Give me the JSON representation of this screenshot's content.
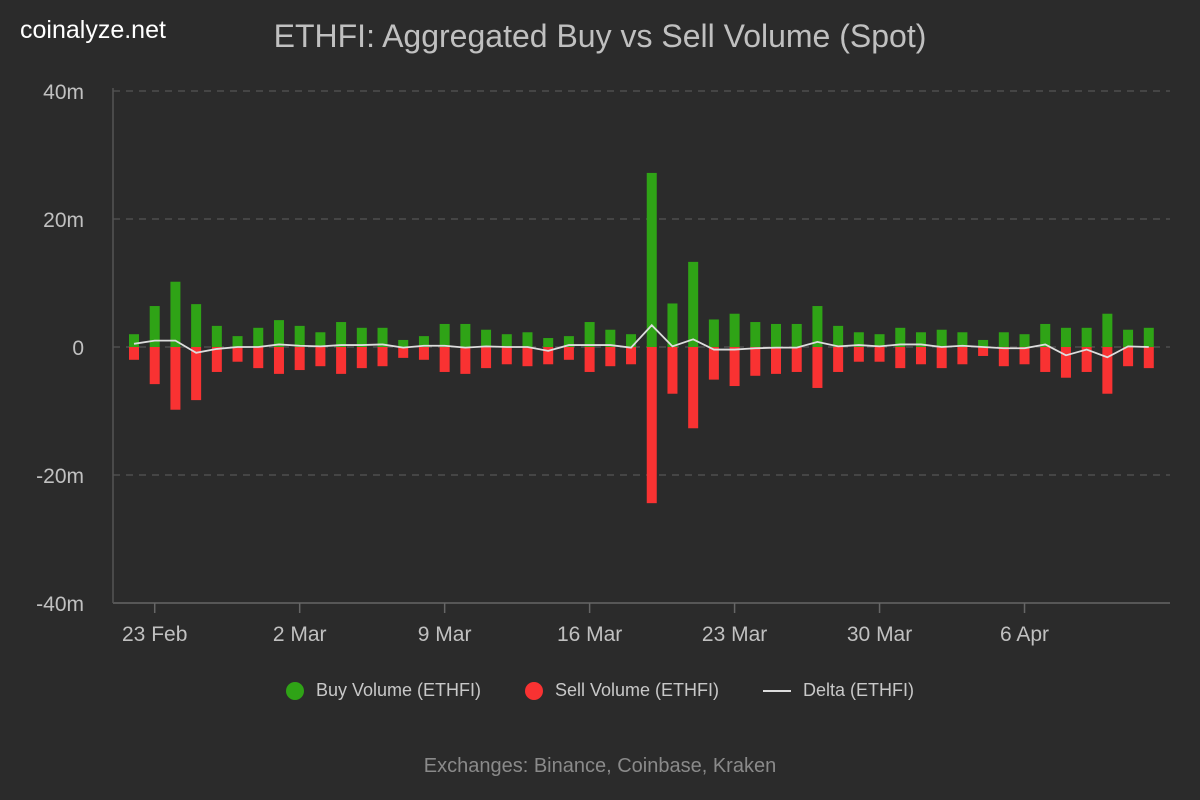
{
  "brand": "coinalyze.net",
  "chart_data": {
    "type": "bar",
    "title": "ETHFI: Aggregated Buy vs Sell Volume (Spot)",
    "categories": [
      "22 Feb",
      "23 Feb",
      "24 Feb",
      "25 Feb",
      "26 Feb",
      "27 Feb",
      "28 Feb",
      "1 Mar",
      "2 Mar",
      "3 Mar",
      "4 Mar",
      "5 Mar",
      "6 Mar",
      "7 Mar",
      "8 Mar",
      "9 Mar",
      "10 Mar",
      "11 Mar",
      "12 Mar",
      "13 Mar",
      "14 Mar",
      "15 Mar",
      "16 Mar",
      "17 Mar",
      "18 Mar",
      "19 Mar",
      "20 Mar",
      "21 Mar",
      "22 Mar",
      "23 Mar",
      "24 Mar",
      "25 Mar",
      "26 Mar",
      "27 Mar",
      "28 Mar",
      "29 Mar",
      "30 Mar",
      "31 Mar",
      "1 Apr",
      "2 Apr",
      "3 Apr",
      "4 Apr",
      "5 Apr",
      "6 Apr",
      "7 Apr",
      "8 Apr",
      "9 Apr",
      "10 Apr",
      "11 Apr",
      "12 Apr"
    ],
    "x_tick_labels": [
      "23 Feb",
      "2 Mar",
      "9 Mar",
      "16 Mar",
      "23 Mar",
      "30 Mar",
      "6 Apr"
    ],
    "y_tick_labels": [
      "40m",
      "20m",
      "0",
      "-20m",
      "-40m"
    ],
    "ylim": [
      -40,
      40
    ],
    "y_unit": "millions",
    "grid": true,
    "legend_position": "bottom",
    "series": [
      {
        "name": "Buy Volume (ETHFI)",
        "type": "bar",
        "color": "#2fa316",
        "values": [
          2.0,
          6.4,
          10.2,
          6.7,
          3.3,
          1.7,
          3.0,
          4.2,
          3.3,
          2.3,
          3.9,
          3.0,
          3.0,
          1.1,
          1.7,
          3.6,
          3.6,
          2.7,
          2.0,
          2.3,
          1.4,
          1.7,
          3.9,
          2.7,
          2.0,
          27.2,
          6.8,
          13.3,
          4.3,
          5.2,
          3.9,
          3.6,
          3.6,
          6.4,
          3.3,
          2.3,
          2.0,
          3.0,
          2.3,
          2.7,
          2.3,
          1.1,
          2.3,
          2.0,
          3.6,
          3.0,
          3.0,
          5.2,
          2.7,
          3.0
        ]
      },
      {
        "name": "Sell Volume (ETHFI)",
        "type": "bar",
        "color": "#f93232",
        "values": [
          -2.0,
          -5.8,
          -9.8,
          -8.3,
          -3.9,
          -2.3,
          -3.3,
          -4.2,
          -3.6,
          -3.0,
          -4.2,
          -3.3,
          -3.0,
          -1.7,
          -2.0,
          -3.9,
          -4.2,
          -3.3,
          -2.7,
          -3.0,
          -2.7,
          -2.0,
          -3.9,
          -3.0,
          -2.7,
          -24.4,
          -7.3,
          -12.7,
          -5.1,
          -6.1,
          -4.5,
          -4.2,
          -3.9,
          -6.4,
          -3.9,
          -2.3,
          -2.3,
          -3.3,
          -2.7,
          -3.3,
          -2.7,
          -1.4,
          -3.0,
          -2.7,
          -3.9,
          -4.8,
          -3.9,
          -7.3,
          -3.0,
          -3.3
        ]
      },
      {
        "name": "Delta (ETHFI)",
        "type": "line",
        "color": "#dddddd",
        "values": [
          0.5,
          1.0,
          1.0,
          -0.9,
          -0.3,
          0,
          0,
          0.4,
          0.2,
          0.1,
          0.3,
          0.3,
          0.4,
          -0.1,
          0.2,
          0.2,
          -0.1,
          0.1,
          0,
          0,
          -0.6,
          0.3,
          0.3,
          0.3,
          -0.1,
          3.4,
          0.1,
          1.2,
          -0.4,
          -0.4,
          -0.2,
          -0.1,
          -0.1,
          0.8,
          0.1,
          0.3,
          0.1,
          0.4,
          0.4,
          0,
          0.2,
          0,
          -0.2,
          -0.2,
          0.4,
          -1.3,
          -0.4,
          -1.6,
          0.1,
          0
        ]
      }
    ]
  },
  "footer": "Exchanges: Binance, Coinbase, Kraken"
}
